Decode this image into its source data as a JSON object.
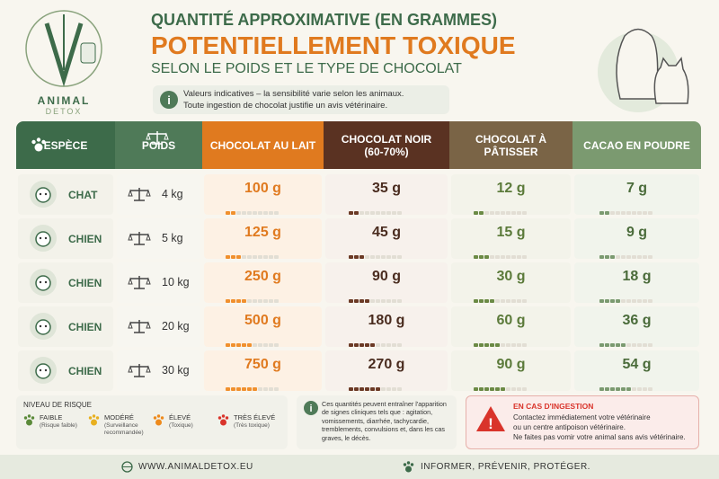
{
  "logo": {
    "name": "ANIMAL",
    "sub": "DETOX"
  },
  "header": {
    "line1": "QUANTITÉ APPROXIMATIVE (EN GRAMMES)",
    "line2": "POTENTIELLEMENT TOXIQUE",
    "line3": "SELON LE POIDS ET LE TYPE DE CHOCOLAT"
  },
  "info": [
    "Valeurs indicatives – la sensibilité varie selon les animaux.",
    "Toute ingestion de chocolat justifie un avis vétérinaire."
  ],
  "table": {
    "columns": [
      "ESPÈCE",
      "POIDS",
      "CHOCOLAT AU LAIT",
      "CHOCOLAT NOIR (60-70%)",
      "CHOCOLAT À PÂTISSER",
      "CACAO EN POUDRE"
    ],
    "rows": [
      [
        "CHAT",
        "4 kg",
        "100 g",
        "35 g",
        "12 g",
        "7 g"
      ],
      [
        "CHIEN",
        "5 kg",
        "125 g",
        "45 g",
        "15 g",
        "9 g"
      ],
      [
        "CHIEN",
        "10 kg",
        "250 g",
        "90 g",
        "30 g",
        "18 g"
      ],
      [
        "CHIEN",
        "20 kg",
        "500 g",
        "180 g",
        "60 g",
        "36 g"
      ],
      [
        "CHIEN",
        "30 kg",
        "750 g",
        "270 g",
        "90 g",
        "54 g"
      ]
    ]
  },
  "legend": {
    "title": "NIVEAU DE RISQUE",
    "items": [
      {
        "label": "FAIBLE",
        "note": "(Risque faible)"
      },
      {
        "label": "MODÉRÉ",
        "note": "(Surveillance recommandée)"
      },
      {
        "label": "ÉLEVÉ",
        "note": "(Toxique)"
      },
      {
        "label": "TRÈS ÉLEVÉ",
        "note": "(Très toxique)"
      }
    ]
  },
  "symptoms": "Ces quantités peuvent entraîner l'apparition de signes cliniques tels que : agitation, vomissements, diarrhée, tachycardie, tremblements, convulsions et, dans les cas graves, le décès.",
  "emergency": {
    "title": "EN CAS D'INGESTION",
    "lines": [
      "Contactez immédiatement votre vétérinaire",
      "ou un centre antipoison vétérinaire.",
      "Ne faites pas vomir votre animal sans avis vétérinaire."
    ]
  },
  "footer": {
    "website": "WWW.ANIMALDETOX.EU",
    "slogan": "INFORMER, PRÉVENIR, PROTÉGER."
  }
}
